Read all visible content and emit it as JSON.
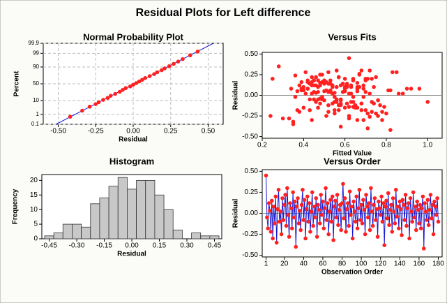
{
  "title": "Residual Plots for Left difference",
  "chart_data": [
    {
      "type": "normal_probability",
      "title": "Normal Probability Plot",
      "xlabel": "Residual",
      "ylabel": "Percent",
      "x": [
        -0.42,
        -0.34,
        -0.29,
        -0.25,
        -0.23,
        -0.2,
        -0.17,
        -0.15,
        -0.12,
        -0.09,
        -0.07,
        -0.05,
        -0.02,
        0.0,
        0.02,
        0.04,
        0.06,
        0.08,
        0.11,
        0.14,
        0.16,
        0.19,
        0.21,
        0.24,
        0.27,
        0.3,
        0.33,
        0.38,
        0.43
      ],
      "y": [
        0.6,
        2,
        4,
        6,
        8,
        11,
        14,
        18,
        22,
        27,
        32,
        37,
        42,
        47,
        52,
        57,
        62,
        67,
        72,
        77,
        81,
        85,
        88,
        91,
        93.5,
        95.5,
        97,
        98.5,
        99.3
      ],
      "fit_line": {
        "x": [
          -0.515,
          0.535
        ],
        "y": [
          0.1,
          99.9
        ]
      },
      "color": "#ff2020",
      "line_color": "#1a1ad0",
      "grid": true,
      "yscale": "normal",
      "xlim": [
        -0.6,
        0.6
      ],
      "xticks": [
        {
          "value": -0.5,
          "label": "-0.50"
        },
        {
          "value": -0.25,
          "label": "-0.25"
        },
        {
          "value": 0,
          "label": "0.00"
        },
        {
          "value": 0.25,
          "label": "0.25"
        },
        {
          "value": 0.5,
          "label": "0.50"
        }
      ],
      "ylim": [
        0.1,
        99.9
      ],
      "yticks": [
        0.1,
        1,
        10,
        50,
        90,
        99,
        99.9
      ]
    },
    {
      "type": "scatter",
      "title": "Versus Fits",
      "xlabel": "Fitted Value",
      "ylabel": "Residual",
      "color": "#ff2020",
      "reference_line": 0,
      "x": [
        0.62,
        0.45,
        0.7,
        0.38,
        0.55,
        0.8,
        0.48,
        0.66,
        0.42,
        0.58,
        0.73,
        0.35,
        0.6,
        0.52,
        0.68,
        0.44,
        0.76,
        0.5,
        0.64,
        0.4,
        0.57,
        0.47,
        0.72,
        0.36,
        0.62,
        0.54,
        0.82,
        0.43,
        0.67,
        0.49,
        0.59,
        0.71,
        0.39,
        0.53,
        0.65,
        0.46,
        0.78,
        0.56,
        0.41,
        0.63,
        0.51,
        0.69,
        0.37,
        0.6,
        0.74,
        0.45,
        0.55,
        0.86,
        0.48,
        0.66,
        0.42,
        0.58,
        0.7,
        0.33,
        0.61,
        0.52,
        0.77,
        0.44,
        0.64,
        0.5,
        0.68,
        0.39,
        0.56,
        0.73,
        0.46,
        0.62,
        0.88,
        0.49,
        0.54,
        0.71,
        0.35,
        0.6,
        0.66,
        0.43,
        0.57,
        0.79,
        0.47,
        0.63,
        0.52,
        0.69,
        0.28,
        0.58,
        0.45,
        0.75,
        0.5,
        0.61,
        0.4,
        0.67,
        0.55,
        0.92,
        0.44,
        0.59,
        0.72,
        0.48,
        0.64,
        0.37,
        0.53,
        0.83,
        0.46,
        0.6,
        0.65,
        0.42,
        0.7,
        0.51,
        0.57,
        0.96,
        0.47,
        0.63,
        0.38,
        0.68,
        0.54,
        0.6,
        0.74,
        0.45,
        0.56,
        0.66,
        0.3,
        0.52,
        0.81,
        0.49,
        0.25,
        0.61,
        0.44,
        0.58,
        0.69,
        0.5,
        0.76,
        0.36,
        0.62,
        0.53,
        0.47,
        0.71,
        0.64,
        0.41,
        0.57,
        0.85,
        0.48,
        0.66,
        0.55,
        0.43,
        0.6,
        0.72,
        0.39,
        0.54,
        1.0,
        0.46,
        0.65,
        0.51,
        0.58,
        0.78,
        0.42,
        0.63,
        0.68,
        0.49,
        0.56,
        0.34,
        0.73,
        0.61,
        0.45,
        0.52,
        0.67,
        0.57,
        0.4,
        0.7,
        0.82,
        0.48,
        0.62,
        0.55,
        0.44,
        0.64,
        0.59,
        0.75,
        0.5,
        0.66,
        0.24,
        0.53,
        0.9,
        0.69,
        0.47,
        0.58
      ],
      "y": [
        0.45,
        -0.05,
        -0.18,
        0.12,
        0.03,
        -0.22,
        0.15,
        -0.3,
        0.08,
        -0.12,
        0.2,
        -0.35,
        0.05,
        0.28,
        -0.1,
        0.02,
        -0.25,
        0.18,
        -0.08,
        0.1,
        0.22,
        -0.15,
        0.3,
        -0.02,
        -0.28,
        0.12,
        0.06,
        -0.18,
        0.25,
        -0.05,
        0.14,
        -0.4,
        0.08,
        0.18,
        -0.12,
        0.03,
        -0.2,
        0.1,
        0.28,
        -0.08,
        0.16,
        -0.3,
        0.05,
        0.2,
        -0.1,
        0.12,
        -0.22,
        0.02,
        0.25,
        -0.15,
        0.08,
        -0.05,
        0.18,
        -0.28,
        0.1,
        0.04,
        -0.12,
        0.22,
        -0.02,
        0.14,
        -0.18,
        0.06,
        0.3,
        -0.08,
        0.12,
        -0.25,
        0.02,
        0.16,
        -0.1,
        0.2,
        -0.32,
        0.08,
        0.15,
        -0.05,
        0.22,
        -0.14,
        0.04,
        0.1,
        -0.2,
        0.12,
        0.35,
        -0.06,
        0.18,
        -0.22,
        0.05,
        0.12,
        -0.15,
        0.26,
        -0.02,
        0.08,
        -0.3,
        0.14,
        0.02,
        -0.1,
        0.2,
        -0.18,
        0.06,
        0.28,
        -0.08,
        0.1,
        -0.12,
        0.16,
        0.04,
        -0.25,
        0.22,
        0.08,
        -0.05,
        0.12,
        -0.2,
        0.3,
        0.02,
        -0.15,
        0.1,
        0.18,
        -0.08,
        0.05,
        -0.28,
        0.14,
        0.06,
        -0.02,
        0.2,
        -0.1,
        0.12,
        -0.38,
        0.08,
        0.15,
        -0.06,
        0.24,
        -0.14,
        0.04,
        0.1,
        -0.22,
        0.18,
        0.02,
        -0.12,
        0.28,
        -0.04,
        0.08,
        -0.18,
        0.14,
        0.05,
        -0.26,
        0.16,
        0.1,
        -0.08,
        0.22,
        -0.15,
        0.06,
        0.12,
        -0.3,
        0.18,
        0.02,
        -0.1,
        0.25,
        -0.05,
        0.08,
        -0.2,
        0.14,
        0.04,
        -0.12,
        0.1,
        -0.18,
        0.06,
        0.2,
        -0.42,
        0.12,
        0.02,
        -0.08,
        0.16,
        -0.14,
        0.04,
        0.22,
        -0.06,
        0.1,
        -0.25,
        0.14,
        0.08,
        -0.02,
        0.18,
        -0.1
      ],
      "xlim": [
        0.2,
        1.07
      ],
      "xticks": [
        {
          "value": 0.2,
          "label": "0.2"
        },
        {
          "value": 0.4,
          "label": "0.4"
        },
        {
          "value": 0.6,
          "label": "0.6"
        },
        {
          "value": 0.8,
          "label": "0.8"
        },
        {
          "value": 1.0,
          "label": "1.0"
        }
      ],
      "ylim": [
        -0.52,
        0.52
      ],
      "yticks": [
        {
          "value": -0.5,
          "label": "-0.50"
        },
        {
          "value": -0.25,
          "label": "-0.25"
        },
        {
          "value": 0,
          "label": "0.00"
        },
        {
          "value": 0.25,
          "label": "0.25"
        },
        {
          "value": 0.5,
          "label": "0.50"
        }
      ]
    },
    {
      "type": "histogram",
      "title": "Histogram",
      "xlabel": "Residual",
      "ylabel": "Frequency",
      "color": "#c8c8c8",
      "bins": [
        -0.475,
        -0.425,
        -0.375,
        -0.325,
        -0.275,
        -0.225,
        -0.175,
        -0.125,
        -0.075,
        -0.025,
        0.025,
        0.075,
        0.125,
        0.175,
        0.225,
        0.275,
        0.325,
        0.375,
        0.425,
        0.475
      ],
      "counts": [
        1,
        2,
        5,
        5,
        4,
        12,
        14,
        18,
        21,
        17,
        20,
        20,
        15,
        10,
        3,
        0,
        2,
        1,
        1
      ],
      "xlim": [
        -0.49,
        0.49
      ],
      "xticks": [
        {
          "value": -0.45,
          "label": "-0.45"
        },
        {
          "value": -0.3,
          "label": "-0.30"
        },
        {
          "value": -0.15,
          "label": "-0.15"
        },
        {
          "value": 0,
          "label": "0.00"
        },
        {
          "value": 0.15,
          "label": "0.15"
        },
        {
          "value": 0.3,
          "label": "0.30"
        },
        {
          "value": 0.45,
          "label": "0.45"
        }
      ],
      "ylim": [
        0,
        22
      ],
      "yticks": [
        0,
        5,
        10,
        15,
        20
      ]
    },
    {
      "type": "line",
      "title": "Versus Order",
      "xlabel": "Observation Order",
      "ylabel": "Residual",
      "color": "#ff2020",
      "line_color": "#1a1ad0",
      "reference_line": 0,
      "x": [
        1,
        2,
        3,
        4,
        5,
        6,
        7,
        8,
        9,
        10,
        11,
        12,
        13,
        14,
        15,
        16,
        17,
        18,
        19,
        20,
        21,
        22,
        23,
        24,
        25,
        26,
        27,
        28,
        29,
        30,
        31,
        32,
        33,
        34,
        35,
        36,
        37,
        38,
        39,
        40,
        41,
        42,
        43,
        44,
        45,
        46,
        47,
        48,
        49,
        50,
        51,
        52,
        53,
        54,
        55,
        56,
        57,
        58,
        59,
        60,
        61,
        62,
        63,
        64,
        65,
        66,
        67,
        68,
        69,
        70,
        71,
        72,
        73,
        74,
        75,
        76,
        77,
        78,
        79,
        80,
        81,
        82,
        83,
        84,
        85,
        86,
        87,
        88,
        89,
        90,
        91,
        92,
        93,
        94,
        95,
        96,
        97,
        98,
        99,
        100,
        101,
        102,
        103,
        104,
        105,
        106,
        107,
        108,
        109,
        110,
        111,
        112,
        113,
        114,
        115,
        116,
        117,
        118,
        119,
        120,
        121,
        122,
        123,
        124,
        125,
        126,
        127,
        128,
        129,
        130,
        131,
        132,
        133,
        134,
        135,
        136,
        137,
        138,
        139,
        140,
        141,
        142,
        143,
        144,
        145,
        146,
        147,
        148,
        149,
        150,
        151,
        152,
        153,
        154,
        155,
        156,
        157,
        158,
        159,
        160,
        161,
        162,
        163,
        164,
        165,
        166,
        167,
        168,
        169,
        170,
        171,
        172,
        173,
        174,
        175,
        176,
        177,
        178,
        179,
        180
      ],
      "y": [
        0.45,
        -0.05,
        -0.18,
        0.12,
        0.03,
        -0.22,
        0.15,
        -0.3,
        0.08,
        -0.12,
        0.2,
        -0.35,
        0.05,
        0.28,
        -0.1,
        0.02,
        -0.25,
        0.18,
        -0.08,
        0.1,
        0.22,
        -0.15,
        0.3,
        -0.02,
        -0.28,
        0.12,
        0.06,
        -0.18,
        0.25,
        -0.05,
        0.14,
        -0.4,
        0.08,
        0.18,
        -0.12,
        0.03,
        -0.2,
        0.1,
        0.28,
        -0.08,
        0.16,
        -0.3,
        0.05,
        0.2,
        -0.1,
        0.12,
        -0.22,
        0.02,
        0.25,
        -0.15,
        0.08,
        -0.05,
        0.18,
        -0.28,
        0.1,
        0.04,
        -0.12,
        0.22,
        -0.02,
        0.14,
        -0.18,
        0.06,
        0.3,
        -0.08,
        0.12,
        -0.25,
        0.02,
        0.16,
        -0.1,
        0.2,
        -0.32,
        0.08,
        0.15,
        -0.05,
        0.22,
        -0.14,
        0.04,
        0.1,
        -0.2,
        0.12,
        0.35,
        -0.06,
        0.18,
        -0.22,
        0.05,
        0.12,
        -0.15,
        0.26,
        -0.02,
        0.08,
        -0.3,
        0.14,
        0.02,
        -0.1,
        0.2,
        -0.18,
        0.06,
        0.28,
        -0.08,
        0.1,
        -0.12,
        0.16,
        0.04,
        -0.25,
        0.22,
        0.08,
        -0.05,
        0.12,
        -0.2,
        0.3,
        0.02,
        -0.15,
        0.1,
        0.18,
        -0.08,
        0.05,
        -0.28,
        0.14,
        0.06,
        -0.02,
        0.2,
        -0.1,
        0.12,
        -0.38,
        0.08,
        0.15,
        -0.06,
        0.24,
        -0.14,
        0.04,
        0.1,
        -0.22,
        0.18,
        0.02,
        -0.12,
        0.28,
        -0.04,
        0.08,
        -0.18,
        0.14,
        0.05,
        -0.26,
        0.16,
        0.1,
        -0.08,
        0.22,
        -0.15,
        0.06,
        0.12,
        -0.3,
        0.18,
        0.02,
        -0.1,
        0.25,
        -0.05,
        0.08,
        -0.2,
        0.14,
        0.04,
        -0.12,
        0.1,
        -0.18,
        0.06,
        0.2,
        -0.42,
        0.12,
        0.02,
        -0.08,
        0.16,
        -0.14,
        0.04,
        0.22,
        -0.06,
        0.1,
        -0.25,
        0.14,
        0.08,
        -0.02,
        0.18,
        -0.1
      ],
      "xlim": [
        -3,
        184
      ],
      "xticks": [
        1,
        20,
        40,
        60,
        80,
        100,
        120,
        140,
        160,
        180
      ],
      "ylim": [
        -0.52,
        0.52
      ],
      "yticks": [
        {
          "value": -0.5,
          "label": "-0.50"
        },
        {
          "value": -0.25,
          "label": "-0.25"
        },
        {
          "value": 0,
          "label": "0.00"
        },
        {
          "value": 0.25,
          "label": "0.25"
        },
        {
          "value": 0.5,
          "label": "0.50"
        }
      ]
    }
  ]
}
